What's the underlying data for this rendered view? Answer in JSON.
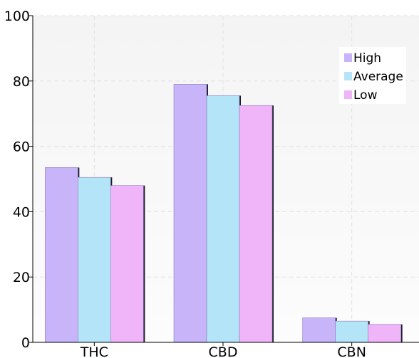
{
  "chart_data": {
    "type": "bar",
    "title": "",
    "xlabel": "",
    "ylabel": "",
    "categories": [
      "THC",
      "CBD",
      "CBN"
    ],
    "series": [
      {
        "name": "High",
        "values": [
          53.5,
          79,
          7.5
        ],
        "color": "#c8b4f8"
      },
      {
        "name": "Average",
        "values": [
          50.5,
          75.5,
          6.5
        ],
        "color": "#b4e4f8"
      },
      {
        "name": "Low",
        "values": [
          48,
          72.5,
          5.5
        ],
        "color": "#f0b4f8"
      }
    ],
    "ylim": [
      0,
      100
    ],
    "yticks": [
      0,
      20,
      40,
      60,
      80,
      100
    ],
    "grid": true,
    "legend_position": "top-right"
  }
}
